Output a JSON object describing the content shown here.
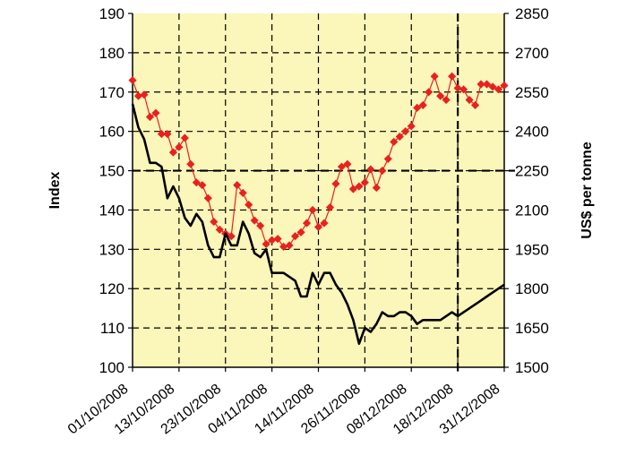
{
  "chart_data": {
    "type": "line",
    "title": "",
    "xlabel": "",
    "ylabel_left": "Index",
    "ylabel_right": "US$ per tonne",
    "ylim_left": [
      100,
      190
    ],
    "ylim_right": [
      1500,
      2850
    ],
    "yticks_left": [
      "100",
      "110",
      "120",
      "130",
      "140",
      "150",
      "160",
      "170",
      "180",
      "190"
    ],
    "yticks_right": [
      "1500",
      "1650",
      "1800",
      "1950",
      "2100",
      "2250",
      "2400",
      "2550",
      "2700",
      "2850"
    ],
    "x_tick_labels": [
      "01/10/2008",
      "13/10/2008",
      "23/10/2008",
      "04/11/2008",
      "14/11/2008",
      "26/11/2008",
      "08/12/2008",
      "18/12/2008",
      "31/12/2008"
    ],
    "x_index_range": [
      0,
      64
    ],
    "x_tick_positions": [
      0,
      8,
      16,
      24,
      32,
      40,
      48,
      56,
      64
    ],
    "grid": true,
    "plot_background": "#fbf6b9",
    "series": [
      {
        "axis": "right",
        "color": "#e8211f",
        "marker": "diamond",
        "x": [
          0,
          1,
          2,
          3,
          4,
          5,
          6,
          7,
          8,
          9,
          10,
          11,
          12,
          13,
          14,
          15,
          16,
          17,
          18,
          19,
          20,
          21,
          22,
          23,
          24,
          25,
          26,
          27,
          28,
          29,
          30,
          31,
          32,
          33,
          34,
          35,
          36,
          37,
          38,
          39,
          40,
          41,
          42,
          43,
          44,
          45,
          46,
          47,
          48,
          49,
          50,
          51,
          52,
          53,
          54,
          55,
          56,
          57,
          58,
          59,
          60,
          61,
          62,
          63,
          64
        ],
        "values": [
          2595,
          2535,
          2540,
          2455,
          2470,
          2390,
          2390,
          2320,
          2340,
          2375,
          2275,
          2205,
          2195,
          2145,
          2055,
          2025,
          2010,
          2000,
          2195,
          2165,
          2120,
          2060,
          2040,
          1970,
          1985,
          1990,
          1960,
          1965,
          2000,
          2015,
          2050,
          2100,
          2035,
          2050,
          2110,
          2200,
          2265,
          2275,
          2180,
          2190,
          2205,
          2255,
          2185,
          2250,
          2295,
          2360,
          2380,
          2400,
          2420,
          2490,
          2500,
          2550,
          2610,
          2535,
          2520,
          2610,
          2565,
          2560,
          2520,
          2500,
          2580,
          2580,
          2570,
          2560,
          2575
        ]
      },
      {
        "axis": "left",
        "color": "#000000",
        "marker": "none",
        "x": [
          0,
          1,
          2,
          3,
          4,
          5,
          6,
          7,
          8,
          9,
          10,
          11,
          12,
          13,
          14,
          15,
          16,
          17,
          18,
          19,
          20,
          21,
          22,
          23,
          24,
          25,
          26,
          27,
          28,
          29,
          30,
          31,
          32,
          33,
          34,
          35,
          36,
          37,
          38,
          39,
          40,
          41,
          42,
          43,
          44,
          45,
          46,
          47,
          48,
          49,
          50,
          51,
          52,
          53,
          54,
          55,
          56,
          57,
          58,
          59,
          60,
          61,
          62,
          63,
          64
        ],
        "values": [
          167,
          161,
          158,
          152,
          152,
          151,
          143,
          146,
          143,
          138,
          136,
          139,
          137,
          131,
          128,
          128,
          134,
          131,
          131,
          137,
          134,
          129,
          128,
          130,
          124,
          124,
          124,
          123,
          122,
          118,
          118,
          124,
          121,
          124,
          124,
          121,
          119,
          116,
          112,
          106,
          110,
          109,
          111,
          114,
          113,
          113,
          114,
          114,
          113,
          111,
          112,
          112,
          112,
          112,
          113,
          114,
          113,
          114,
          115,
          116,
          117,
          118,
          119,
          120,
          121
        ]
      }
    ]
  }
}
